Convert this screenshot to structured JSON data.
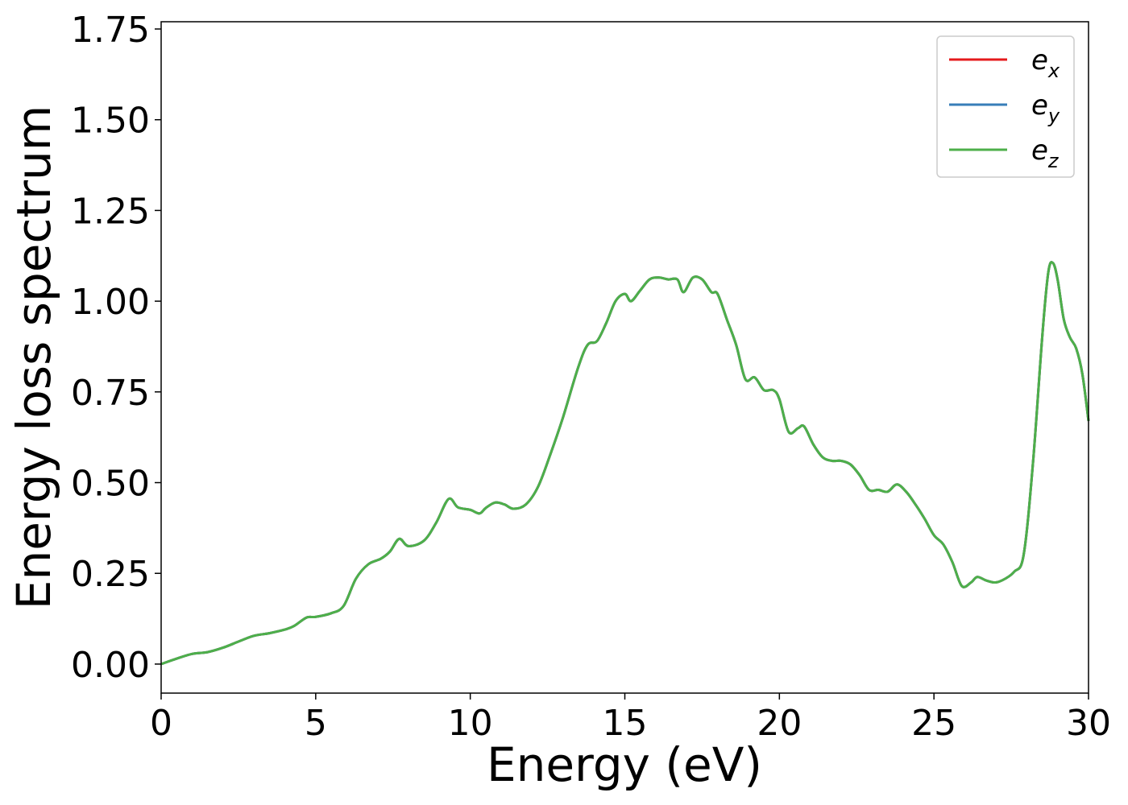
{
  "chart_data": {
    "type": "line",
    "title": "",
    "xlabel": "Energy (eV)",
    "ylabel": "Energy loss spectrum",
    "xlim": [
      0,
      30
    ],
    "ylim": [
      -0.08,
      1.77
    ],
    "xticks": [
      0,
      5,
      10,
      15,
      20,
      25,
      30
    ],
    "xtick_labels": [
      "0",
      "5",
      "10",
      "15",
      "20",
      "25",
      "30"
    ],
    "yticks": [
      0,
      0.25,
      0.5,
      0.75,
      1.0,
      1.25,
      1.5,
      1.75
    ],
    "ytick_labels": [
      "0.00",
      "0.25",
      "0.50",
      "0.75",
      "1.00",
      "1.25",
      "1.50",
      "1.75"
    ],
    "grid": false,
    "legend_position": "top-right",
    "x": [
      0,
      0.5,
      1,
      1.5,
      2,
      2.5,
      3,
      3.5,
      4,
      4.3,
      4.7,
      5,
      5.5,
      5.9,
      6.3,
      6.7,
      7.1,
      7.4,
      7.7,
      8.0,
      8.5,
      8.9,
      9.3,
      9.6,
      10.0,
      10.3,
      10.5,
      10.8,
      11.1,
      11.4,
      11.8,
      12.2,
      12.6,
      13.0,
      13.5,
      13.8,
      14.1,
      14.4,
      14.7,
      15.0,
      15.2,
      15.5,
      15.8,
      16.1,
      16.4,
      16.7,
      16.9,
      17.2,
      17.5,
      17.8,
      18.0,
      18.3,
      18.6,
      18.9,
      19.2,
      19.5,
      19.8,
      20.0,
      20.3,
      20.6,
      20.8,
      21.1,
      21.4,
      21.7,
      22.0,
      22.3,
      22.6,
      22.9,
      23.2,
      23.5,
      23.8,
      24.1,
      24.4,
      24.7,
      25.0,
      25.3,
      25.6,
      25.9,
      26.2,
      26.4,
      26.7,
      27.0,
      27.3,
      27.6,
      27.9,
      28.2,
      28.5,
      28.7,
      28.85,
      29.0,
      29.2,
      29.4,
      29.6,
      29.8,
      30.0
    ],
    "series": [
      {
        "name": "e_x",
        "color": "#e41a1c",
        "values": [
          0.0,
          0.015,
          0.028,
          0.033,
          0.045,
          0.062,
          0.078,
          0.085,
          0.095,
          0.105,
          0.128,
          0.13,
          0.14,
          0.16,
          0.235,
          0.275,
          0.29,
          0.31,
          0.345,
          0.325,
          0.34,
          0.39,
          0.455,
          0.432,
          0.425,
          0.415,
          0.43,
          0.445,
          0.44,
          0.428,
          0.44,
          0.49,
          0.58,
          0.68,
          0.82,
          0.88,
          0.89,
          0.94,
          1.0,
          1.02,
          1.0,
          1.03,
          1.06,
          1.065,
          1.06,
          1.06,
          1.025,
          1.065,
          1.06,
          1.025,
          1.02,
          0.95,
          0.88,
          0.785,
          0.79,
          0.755,
          0.755,
          0.73,
          0.64,
          0.65,
          0.655,
          0.605,
          0.57,
          0.56,
          0.56,
          0.55,
          0.52,
          0.48,
          0.48,
          0.475,
          0.495,
          0.475,
          0.44,
          0.4,
          0.355,
          0.33,
          0.28,
          0.215,
          0.225,
          0.24,
          0.23,
          0.225,
          0.235,
          0.255,
          0.3,
          0.55,
          0.9,
          1.08,
          1.105,
          1.06,
          0.95,
          0.9,
          0.87,
          0.8,
          0.67
        ]
      },
      {
        "name": "e_y",
        "color": "#377eb8",
        "values": [
          0.0,
          0.015,
          0.028,
          0.033,
          0.045,
          0.062,
          0.078,
          0.085,
          0.095,
          0.105,
          0.128,
          0.13,
          0.14,
          0.16,
          0.235,
          0.275,
          0.29,
          0.31,
          0.345,
          0.325,
          0.34,
          0.39,
          0.455,
          0.432,
          0.425,
          0.415,
          0.43,
          0.445,
          0.44,
          0.428,
          0.44,
          0.49,
          0.58,
          0.68,
          0.82,
          0.88,
          0.89,
          0.94,
          1.0,
          1.02,
          1.0,
          1.03,
          1.06,
          1.065,
          1.06,
          1.06,
          1.025,
          1.065,
          1.06,
          1.025,
          1.02,
          0.95,
          0.88,
          0.785,
          0.79,
          0.755,
          0.755,
          0.73,
          0.64,
          0.65,
          0.655,
          0.605,
          0.57,
          0.56,
          0.56,
          0.55,
          0.52,
          0.48,
          0.48,
          0.475,
          0.495,
          0.475,
          0.44,
          0.4,
          0.355,
          0.33,
          0.28,
          0.215,
          0.225,
          0.24,
          0.23,
          0.225,
          0.235,
          0.255,
          0.3,
          0.55,
          0.9,
          1.08,
          1.105,
          1.06,
          0.95,
          0.9,
          0.87,
          0.8,
          0.67
        ]
      },
      {
        "name": "e_z",
        "color": "#4daf4a",
        "values": [
          0.0,
          0.015,
          0.028,
          0.033,
          0.045,
          0.062,
          0.078,
          0.085,
          0.095,
          0.105,
          0.128,
          0.13,
          0.14,
          0.16,
          0.235,
          0.275,
          0.29,
          0.31,
          0.345,
          0.325,
          0.34,
          0.39,
          0.455,
          0.432,
          0.425,
          0.415,
          0.43,
          0.445,
          0.44,
          0.428,
          0.44,
          0.49,
          0.58,
          0.68,
          0.82,
          0.88,
          0.89,
          0.94,
          1.0,
          1.02,
          1.0,
          1.03,
          1.06,
          1.065,
          1.06,
          1.06,
          1.025,
          1.065,
          1.06,
          1.025,
          1.02,
          0.95,
          0.88,
          0.785,
          0.79,
          0.755,
          0.755,
          0.73,
          0.64,
          0.65,
          0.655,
          0.605,
          0.57,
          0.56,
          0.56,
          0.55,
          0.52,
          0.48,
          0.48,
          0.475,
          0.495,
          0.475,
          0.44,
          0.4,
          0.355,
          0.33,
          0.28,
          0.215,
          0.225,
          0.24,
          0.23,
          0.225,
          0.235,
          0.255,
          0.3,
          0.55,
          0.9,
          1.08,
          1.105,
          1.06,
          0.95,
          0.9,
          0.87,
          0.8,
          0.67
        ]
      }
    ],
    "legend": [
      {
        "base": "e",
        "sub": "x"
      },
      {
        "base": "e",
        "sub": "y"
      },
      {
        "base": "e",
        "sub": "z"
      }
    ]
  }
}
